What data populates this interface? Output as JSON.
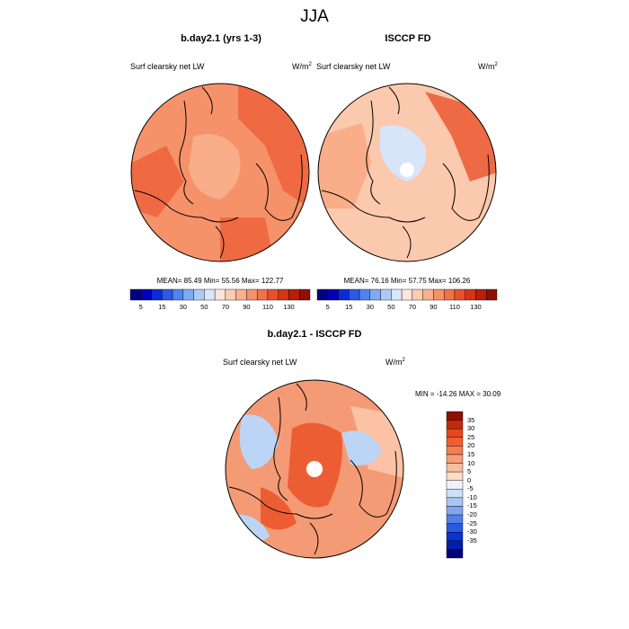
{
  "title": "JJA",
  "panels": [
    {
      "title": "b.day2.1 (yrs 1-3)",
      "variable": "Surf clearsky net LW",
      "units": "W/m",
      "units_exp": "2",
      "stats": "MEAN=  85.49  Min=  55.56  Max= 122.77"
    },
    {
      "title": "ISCCP FD",
      "variable": "Surf clearsky net LW",
      "units": "W/m",
      "units_exp": "2",
      "stats": "MEAN=  76.16  Min=  57.75  Max= 106.26"
    },
    {
      "title": "b.day2.1 - ISCCP FD",
      "variable": "Surf clearsky net LW",
      "units": "W/m",
      "units_exp": "2",
      "stats": "MIN = -14.26 MAX =  30.09"
    }
  ],
  "colorbar_abs": {
    "labels": [
      "5",
      "15",
      "30",
      "50",
      "70",
      "90",
      "110",
      "130"
    ],
    "colors": [
      "#000080",
      "#0000b8",
      "#0a2bd8",
      "#2b5ae8",
      "#4f85ef",
      "#7fa9f3",
      "#aecbf8",
      "#d9e6fb",
      "#fbe6da",
      "#fcccb2",
      "#fab08d",
      "#f6926a",
      "#f07248",
      "#e8522a",
      "#d53515",
      "#b81e08",
      "#8f0f02"
    ]
  },
  "colorbar_diff": {
    "labels": [
      "35",
      "30",
      "25",
      "20",
      "15",
      "10",
      "5",
      "0",
      "-5",
      "-10",
      "-15",
      "-20",
      "-25",
      "-30",
      "-35"
    ],
    "colors": [
      "#8f0f02",
      "#c22a0c",
      "#e8441e",
      "#f05f32",
      "#f37e51",
      "#f69d78",
      "#f9bda0",
      "#fcdcc8",
      "#eef2fb",
      "#cfe0f8",
      "#a9c6f3",
      "#7fa6ee",
      "#5282e6",
      "#2b5ae0",
      "#0a33cf",
      "#001fa8",
      "#00007a"
    ]
  },
  "map_fills": {
    "panel1": {
      "base": "#f6926a",
      "hot": "#ef6a42",
      "warm": "#f9ad88"
    },
    "panel2": {
      "base": "#fbc9ad",
      "hot": "#ee6a44",
      "warm": "#f9ad88",
      "cool": "#d7e5fb"
    },
    "diff": {
      "base": "#f49a74",
      "hot": "#ed5d34",
      "warm": "#fbc2a5",
      "cool": "#bcd4f6",
      "white": "#f4f6fc"
    }
  }
}
